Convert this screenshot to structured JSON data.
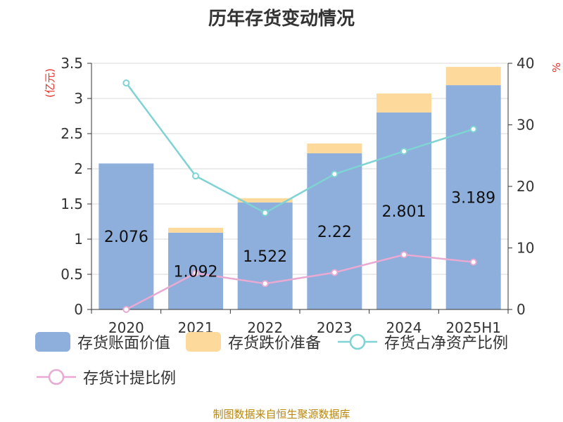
{
  "title": "历年存货变动情况",
  "source": "制图数据来自恒生聚源数据库",
  "colors": {
    "book_value": "#8eaedb",
    "impairment": "#fdd99b",
    "net_asset_ratio": "#7fd3d3",
    "provision_ratio": "#e8aad2",
    "axis_label": "#e8302a"
  },
  "chart_data": {
    "type": "bar",
    "categories": [
      "2020",
      "2021",
      "2022",
      "2023",
      "2024",
      "2025H1"
    ],
    "ylabel_left": "(亿元)",
    "ylabel_right": "%",
    "ylim_left": [
      0,
      3.5
    ],
    "ylim_right": [
      0,
      40
    ],
    "yticks_left": [
      "0",
      "0.5",
      "1",
      "1.5",
      "2",
      "2.5",
      "3",
      "3.5"
    ],
    "yticks_right": [
      "0",
      "10",
      "20",
      "30",
      "40"
    ],
    "grid": true,
    "legend_position": "bottom",
    "series": [
      {
        "name": "存货账面价值",
        "type": "bar",
        "axis": "left",
        "stack": "inv",
        "values": [
          2.076,
          1.092,
          1.522,
          2.22,
          2.801,
          3.189
        ],
        "labels": [
          "2.076",
          "1.092",
          "1.522",
          "2.22",
          "2.801",
          "3.189"
        ]
      },
      {
        "name": "存货跌价准备",
        "type": "bar",
        "axis": "left",
        "stack": "inv",
        "values": [
          0.0,
          0.07,
          0.06,
          0.14,
          0.27,
          0.26
        ]
      },
      {
        "name": "存货占净资产比例",
        "type": "line",
        "axis": "right",
        "values": [
          36.8,
          21.7,
          15.7,
          22.0,
          25.7,
          29.3
        ]
      },
      {
        "name": "存货计提比例",
        "type": "line",
        "axis": "right",
        "values": [
          0.0,
          5.9,
          4.2,
          6.0,
          8.9,
          7.7
        ]
      }
    ]
  }
}
